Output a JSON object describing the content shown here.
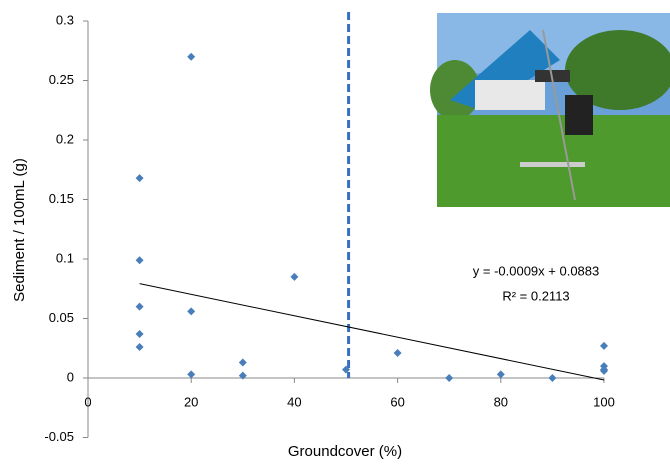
{
  "chart_data": {
    "type": "scatter",
    "x_label": "Groundcover (%)",
    "y_label": "Sediment / 100mL (g)",
    "xlim": [
      0,
      100
    ],
    "xticks": [
      0,
      20,
      40,
      60,
      80,
      100
    ],
    "ylim": [
      -0.05,
      0.3
    ],
    "yticks": [
      -0.05,
      0,
      0.05,
      0.1,
      0.15,
      0.2,
      0.25,
      0.3
    ],
    "series": [
      {
        "color": "#4a7ebb",
        "x": [
          10,
          10,
          10,
          10,
          10,
          20,
          20,
          20,
          30,
          30,
          40,
          50,
          60,
          70,
          80,
          90,
          100,
          100,
          100,
          100
        ],
        "values": [
          0.168,
          0.099,
          0.06,
          0.037,
          0.026,
          0.27,
          0.056,
          0.003,
          0.013,
          0.002,
          0.085,
          0.007,
          0.021,
          0,
          0.003,
          0,
          0.027,
          0.01,
          0.007,
          0.006
        ]
      }
    ],
    "trendline": {
      "x_range": [
        10,
        100
      ],
      "slope": -0.0009,
      "intercept": 0.0883,
      "color": "#000000",
      "equation": "y = -0.0009x + 0.0883",
      "r_squared": "R² = 0.2113"
    },
    "reference_line": {
      "x": 50.5,
      "color": "#3a6fc0"
    }
  }
}
